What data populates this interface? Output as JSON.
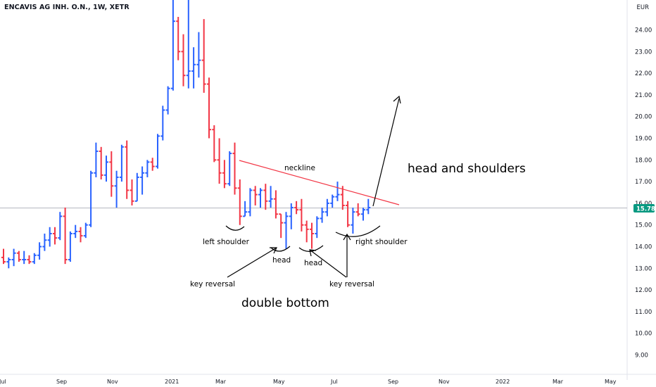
{
  "header": {
    "title": "ENCAVIS AG INH. O.N., 1W, XETR",
    "currency": "EUR"
  },
  "colors": {
    "up": "#2962ff",
    "down": "#f23645",
    "neckline": "#f23645",
    "last_price_bg": "#089981",
    "last_price_line": "#b2b5be"
  },
  "chart_data": {
    "type": "ohlc",
    "interval": "1W",
    "y_axis": {
      "ticks": [
        "9.00",
        "10.00",
        "11.00",
        "12.00",
        "13.00",
        "14.00",
        "15.00",
        "16.00",
        "17.00",
        "18.00",
        "19.00",
        "20.00",
        "21.00",
        "22.00",
        "23.00",
        "24.00"
      ],
      "range": [
        8.4,
        25.4
      ],
      "position": "right"
    },
    "x_axis": {
      "ticks": [
        "Jul",
        "Sep",
        "Nov",
        "2021",
        "Mar",
        "May",
        "Jul",
        "Sep",
        "Nov",
        "2022",
        "Mar",
        "May"
      ]
    },
    "last_price": 15.78,
    "bars": [
      [
        13.5,
        13.9,
        13.2,
        13.3
      ],
      [
        13.3,
        13.5,
        13.0,
        13.4
      ],
      [
        13.4,
        13.9,
        13.1,
        13.7
      ],
      [
        13.7,
        13.8,
        13.3,
        13.4
      ],
      [
        13.4,
        13.8,
        13.2,
        13.4
      ],
      [
        13.4,
        13.6,
        13.2,
        13.3
      ],
      [
        13.3,
        13.7,
        13.2,
        13.6
      ],
      [
        13.6,
        14.2,
        13.4,
        14.0
      ],
      [
        14.0,
        14.6,
        13.8,
        14.3
      ],
      [
        14.3,
        14.9,
        14.0,
        14.6
      ],
      [
        14.6,
        14.9,
        14.1,
        14.4
      ],
      [
        14.4,
        15.6,
        14.3,
        15.4
      ],
      [
        15.4,
        15.8,
        13.2,
        13.4
      ],
      [
        13.4,
        14.7,
        13.3,
        14.6
      ],
      [
        14.6,
        15.0,
        14.4,
        14.7
      ],
      [
        14.7,
        14.9,
        14.2,
        14.5
      ],
      [
        14.5,
        15.1,
        14.4,
        15.0
      ],
      [
        15.0,
        17.5,
        14.9,
        17.4
      ],
      [
        17.4,
        18.8,
        17.2,
        18.4
      ],
      [
        18.4,
        18.6,
        17.1,
        17.3
      ],
      [
        17.3,
        18.2,
        17.0,
        17.9
      ],
      [
        17.9,
        18.4,
        16.3,
        16.8
      ],
      [
        16.8,
        17.5,
        15.8,
        17.2
      ],
      [
        17.2,
        18.7,
        17.0,
        18.6
      ],
      [
        18.6,
        18.9,
        16.2,
        16.6
      ],
      [
        16.6,
        17.1,
        15.9,
        16.1
      ],
      [
        16.1,
        17.4,
        16.1,
        17.2
      ],
      [
        17.2,
        17.7,
        16.4,
        17.4
      ],
      [
        17.4,
        18.0,
        17.2,
        17.9
      ],
      [
        17.9,
        18.1,
        17.5,
        17.7
      ],
      [
        17.7,
        19.2,
        17.6,
        19.1
      ],
      [
        19.1,
        20.5,
        18.9,
        20.3
      ],
      [
        20.3,
        21.4,
        20.1,
        21.3
      ],
      [
        21.3,
        25.6,
        21.2,
        24.4
      ],
      [
        24.4,
        24.6,
        22.6,
        23.0
      ],
      [
        23.0,
        23.8,
        21.4,
        21.9
      ],
      [
        21.9,
        25.9,
        21.3,
        22.1
      ],
      [
        22.1,
        23.2,
        21.3,
        22.4
      ],
      [
        22.4,
        23.9,
        21.8,
        22.6
      ],
      [
        22.6,
        24.5,
        21.1,
        21.5
      ],
      [
        21.5,
        21.8,
        19.0,
        19.4
      ],
      [
        19.4,
        19.6,
        17.9,
        18.0
      ],
      [
        18.0,
        19.0,
        16.9,
        17.4
      ],
      [
        17.4,
        18.0,
        16.7,
        16.9
      ],
      [
        16.9,
        18.4,
        16.8,
        18.3
      ],
      [
        18.3,
        18.8,
        16.4,
        16.7
      ],
      [
        16.7,
        17.1,
        15.0,
        15.4
      ],
      [
        15.4,
        16.1,
        15.4,
        15.6
      ],
      [
        15.6,
        16.7,
        15.4,
        16.6
      ],
      [
        16.6,
        16.8,
        15.9,
        16.4
      ],
      [
        16.4,
        16.7,
        15.8,
        16.6
      ],
      [
        16.6,
        16.9,
        15.7,
        16.1
      ],
      [
        16.1,
        16.8,
        15.8,
        16.2
      ],
      [
        16.2,
        16.6,
        15.3,
        15.5
      ],
      [
        15.5,
        15.5,
        14.4,
        15.1
      ],
      [
        15.1,
        15.6,
        13.9,
        15.4
      ],
      [
        15.4,
        16.0,
        14.8,
        15.8
      ],
      [
        15.8,
        16.1,
        15.5,
        15.7
      ],
      [
        15.7,
        16.2,
        14.7,
        15.0
      ],
      [
        15.0,
        15.2,
        14.2,
        14.8
      ],
      [
        14.8,
        15.1,
        13.9,
        14.6
      ],
      [
        14.6,
        15.4,
        14.4,
        15.3
      ],
      [
        15.3,
        15.8,
        15.1,
        15.6
      ],
      [
        15.6,
        16.2,
        15.4,
        16.0
      ],
      [
        16.0,
        16.4,
        15.8,
        16.3
      ],
      [
        16.3,
        17.0,
        16.1,
        16.4
      ],
      [
        16.4,
        16.8,
        15.7,
        15.9
      ],
      [
        15.9,
        16.1,
        14.9,
        15.0
      ],
      [
        15.0,
        15.8,
        14.6,
        15.6
      ],
      [
        15.6,
        16.0,
        15.4,
        15.5
      ],
      [
        15.5,
        15.8,
        15.2,
        15.7
      ],
      [
        15.7,
        16.2,
        15.5,
        15.8
      ]
    ],
    "annotations": {
      "neckline": "neckline",
      "left_shoulder": "left shoulder",
      "head_1": "head",
      "head_2": "head",
      "right_shoulder": "right shoulder",
      "key_reversal_1": "key reversal",
      "key_reversal_2": "key reversal",
      "double_bottom": "double bottom",
      "head_and_shoulders": "head and shoulders"
    }
  }
}
